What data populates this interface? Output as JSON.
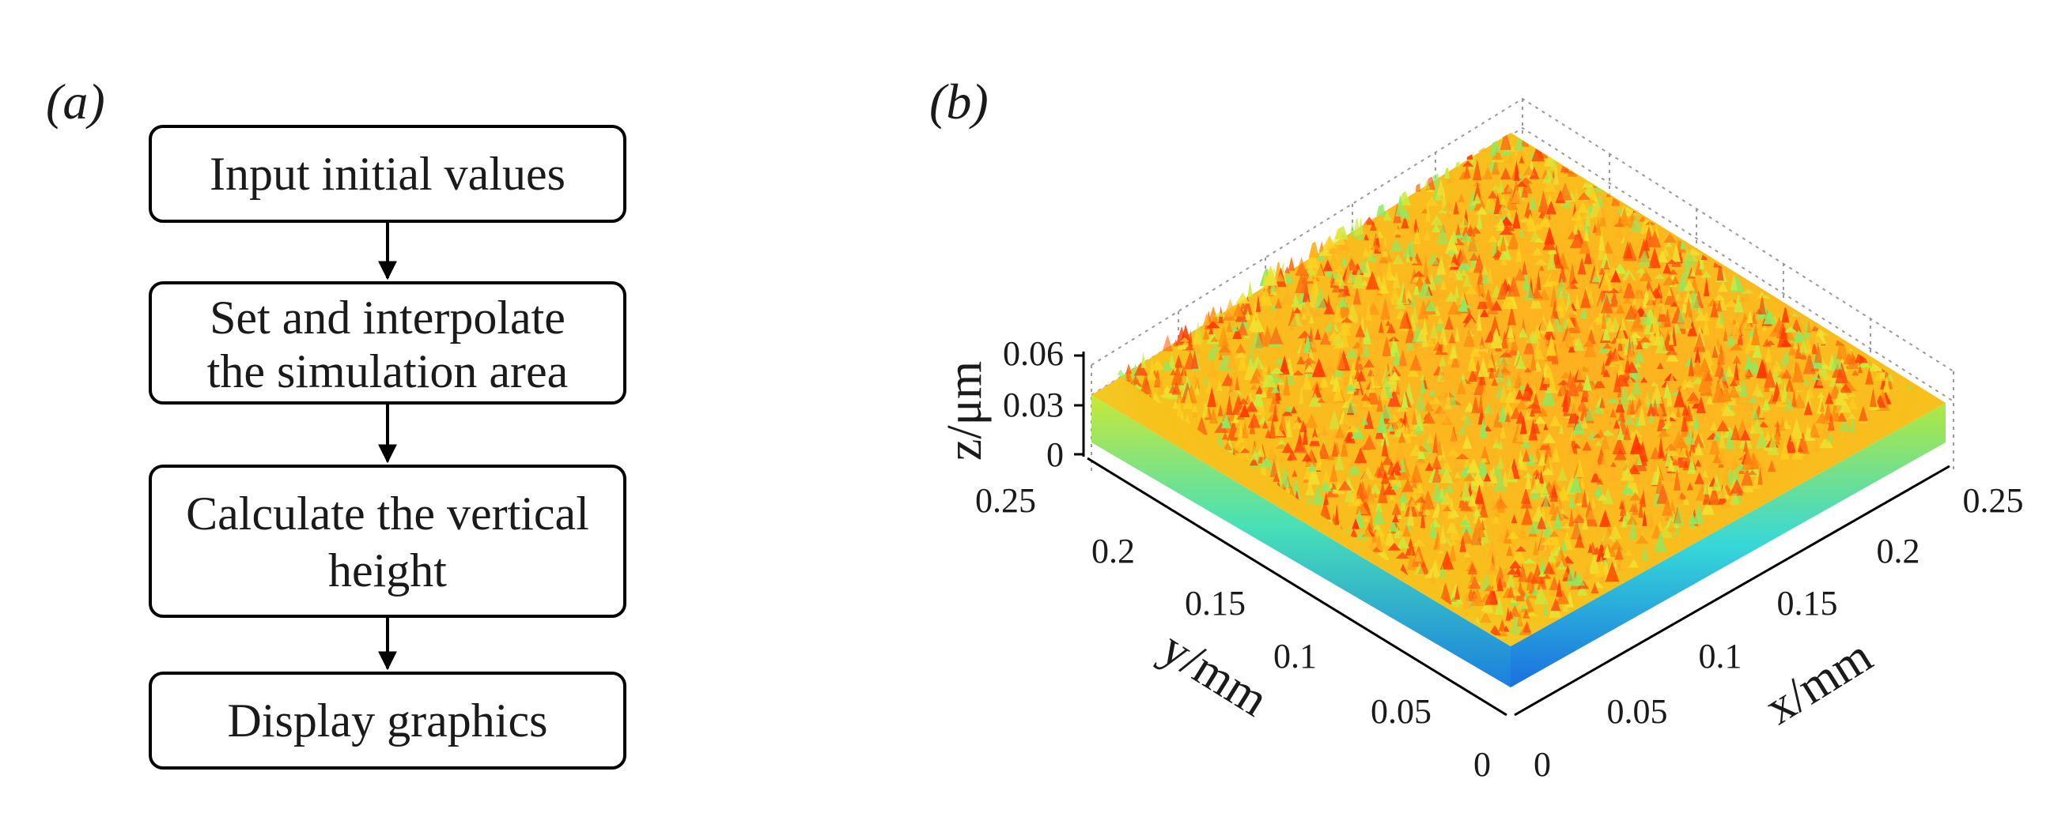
{
  "panel_a": {
    "label": "(a)",
    "steps": [
      {
        "lines": [
          "Input initial values"
        ]
      },
      {
        "lines": [
          "Set and interpolate",
          "the simulation area"
        ]
      },
      {
        "lines": [
          "Calculate the vertical",
          "height"
        ]
      },
      {
        "lines": [
          "Display graphics"
        ]
      }
    ]
  },
  "panel_b": {
    "label": "(b)",
    "plot_type": "3d-surface",
    "colormap": "jet",
    "x_axis": {
      "title": "x/mm",
      "range": [
        0,
        0.25
      ],
      "ticks": [
        "0",
        "0.05",
        "0.1",
        "0.15",
        "0.2",
        "0.25"
      ]
    },
    "y_axis": {
      "title": "y/mm",
      "range": [
        0,
        0.25
      ],
      "ticks": [
        "0",
        "0.05",
        "0.1",
        "0.15",
        "0.2",
        "0.25"
      ]
    },
    "z_axis": {
      "title": "z/μm",
      "range": [
        0,
        0.06
      ],
      "ticks": [
        "0",
        "0.03",
        "0.06"
      ]
    },
    "grid": true
  }
}
